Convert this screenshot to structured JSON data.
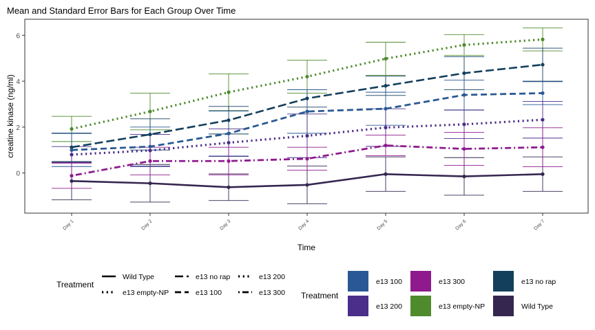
{
  "chart_data": {
    "type": "line",
    "title": "Mean and Standard Error Bars for Each Group Over Time",
    "xlabel": "Time",
    "ylabel": "creatine kinase (ng/ml)",
    "categories": [
      "Day 1",
      "Day 2",
      "Day 3",
      "Day 4",
      "Day 5",
      "Day 6",
      "Day 7"
    ],
    "yticks": [
      0,
      2,
      4,
      6
    ],
    "ylim": [
      -1.75,
      6.7
    ],
    "grid": false,
    "series": [
      {
        "name": "Wild Type",
        "color": "#35264f",
        "dash": "solid",
        "values": [
          -0.35,
          -0.45,
          -0.62,
          -0.52,
          -0.05,
          -0.15,
          -0.05
        ],
        "errors": [
          0.82,
          0.82,
          0.58,
          0.82,
          0.75,
          0.82,
          0.75
        ]
      },
      {
        "name": "e13 empty-NP",
        "color": "#4f8a2d",
        "dash": "dotted",
        "values": [
          1.92,
          2.68,
          3.52,
          4.2,
          4.98,
          5.58,
          5.82
        ],
        "errors": [
          0.55,
          0.8,
          0.8,
          0.72,
          0.72,
          0.45,
          0.5
        ]
      },
      {
        "name": "e13 no rap",
        "color": "#133f5c",
        "dash": "longdash",
        "values": [
          1.12,
          1.68,
          2.3,
          3.25,
          3.8,
          4.35,
          4.72
        ],
        "errors": [
          0.62,
          0.68,
          0.6,
          0.38,
          0.42,
          0.72,
          0.72
        ]
      },
      {
        "name": "e13 100",
        "color": "#2a5894",
        "dash": "dashed",
        "values": [
          1.0,
          1.15,
          1.72,
          2.68,
          2.8,
          3.4,
          3.48
        ],
        "errors": [
          0.72,
          0.85,
          0.98,
          0.95,
          0.72,
          0.65,
          0.5
        ]
      },
      {
        "name": "e13 200",
        "color": "#4b2e8a",
        "dash": "dotted",
        "values": [
          0.8,
          0.98,
          1.32,
          1.62,
          1.98,
          2.12,
          2.32
        ],
        "errors": [
          0.35,
          0.7,
          0.6,
          0.95,
          0.82,
          0.62,
          0.8
        ]
      },
      {
        "name": "e13 300",
        "color": "#8e1a8e",
        "dash": "dotdash",
        "values": [
          -0.12,
          0.52,
          0.52,
          0.62,
          1.2,
          1.05,
          1.12
        ],
        "errors": [
          0.55,
          0.6,
          0.6,
          0.5,
          0.45,
          0.72,
          0.85
        ]
      }
    ],
    "legends": [
      {
        "title": "Treatment",
        "kind": "linetype",
        "items": [
          "Wild Type",
          "e13 no rap",
          "e13 200",
          "e13 empty-NP",
          "e13 100",
          "e13 300"
        ]
      },
      {
        "title": "Treatment",
        "kind": "fill",
        "items": [
          {
            "label": "e13 100",
            "color": "#2a5894"
          },
          {
            "label": "e13 300",
            "color": "#8e1a8e"
          },
          {
            "label": "e13 no rap",
            "color": "#133f5c"
          },
          {
            "label": "e13 200",
            "color": "#4b2e8a"
          },
          {
            "label": "e13 empty-NP",
            "color": "#4f8a2d"
          },
          {
            "label": "Wild Type",
            "color": "#35264f"
          }
        ]
      }
    ]
  }
}
